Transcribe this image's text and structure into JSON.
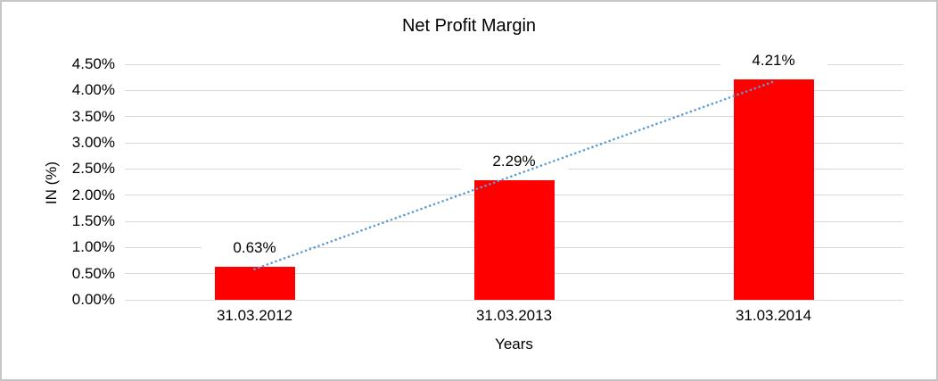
{
  "chart_data": {
    "type": "bar",
    "title": "Net Profit Margin",
    "categories": [
      "31.03.2012",
      "31.03.2013",
      "31.03.2014"
    ],
    "values": [
      0.63,
      2.29,
      4.21
    ],
    "data_labels": [
      "0.63%",
      "2.29%",
      "4.21%"
    ],
    "xlabel": "Years",
    "ylabel": "IN (%)",
    "ylim": [
      0,
      4.5
    ],
    "ytick_step": 0.5,
    "ytick_labels": [
      "0.00%",
      "0.50%",
      "1.00%",
      "1.50%",
      "2.00%",
      "2.50%",
      "3.00%",
      "3.50%",
      "4.00%",
      "4.50%"
    ],
    "legend": "none",
    "grid": "horizontal",
    "trendline": {
      "type": "linear",
      "style": "dotted"
    },
    "colors": {
      "bar": "#FF0000",
      "gridline": "#D9D9D9",
      "text": "#000000",
      "trendline": "#5B9BD5",
      "canvas_border": "#C6C6C6"
    }
  }
}
